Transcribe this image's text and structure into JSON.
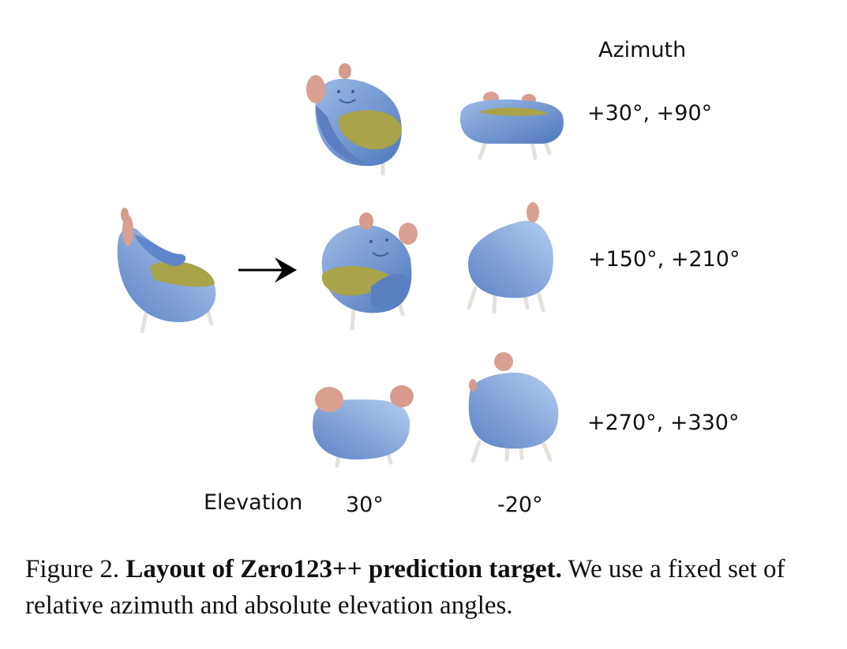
{
  "figure": {
    "axis_labels": {
      "azimuth": "Azimuth",
      "elevation": "Elevation"
    },
    "azimuth_rows": [
      "+30°, +90°",
      "+150°, +210°",
      "+270°, +330°"
    ],
    "elevation_columns": [
      "30°",
      "-20°"
    ],
    "views": {
      "input": "input-view-chair",
      "grid": [
        [
          "chair-az30-el30",
          "chair-az90-el-20"
        ],
        [
          "chair-az150-el30",
          "chair-az210-el-20"
        ],
        [
          "chair-az270-el30",
          "chair-az330-el-20"
        ]
      ]
    },
    "colors": {
      "chair_body": "#5f86c9",
      "chair_light": "#8fb1e0",
      "cushion": "#a9a34a",
      "ears": "#d9a092",
      "legs": "#e6e3dc"
    }
  },
  "caption": {
    "label": "Figure 2.",
    "title": "Layout of Zero123++ prediction target.",
    "text": "We use a fixed set of relative azimuth and absolute elevation angles."
  }
}
